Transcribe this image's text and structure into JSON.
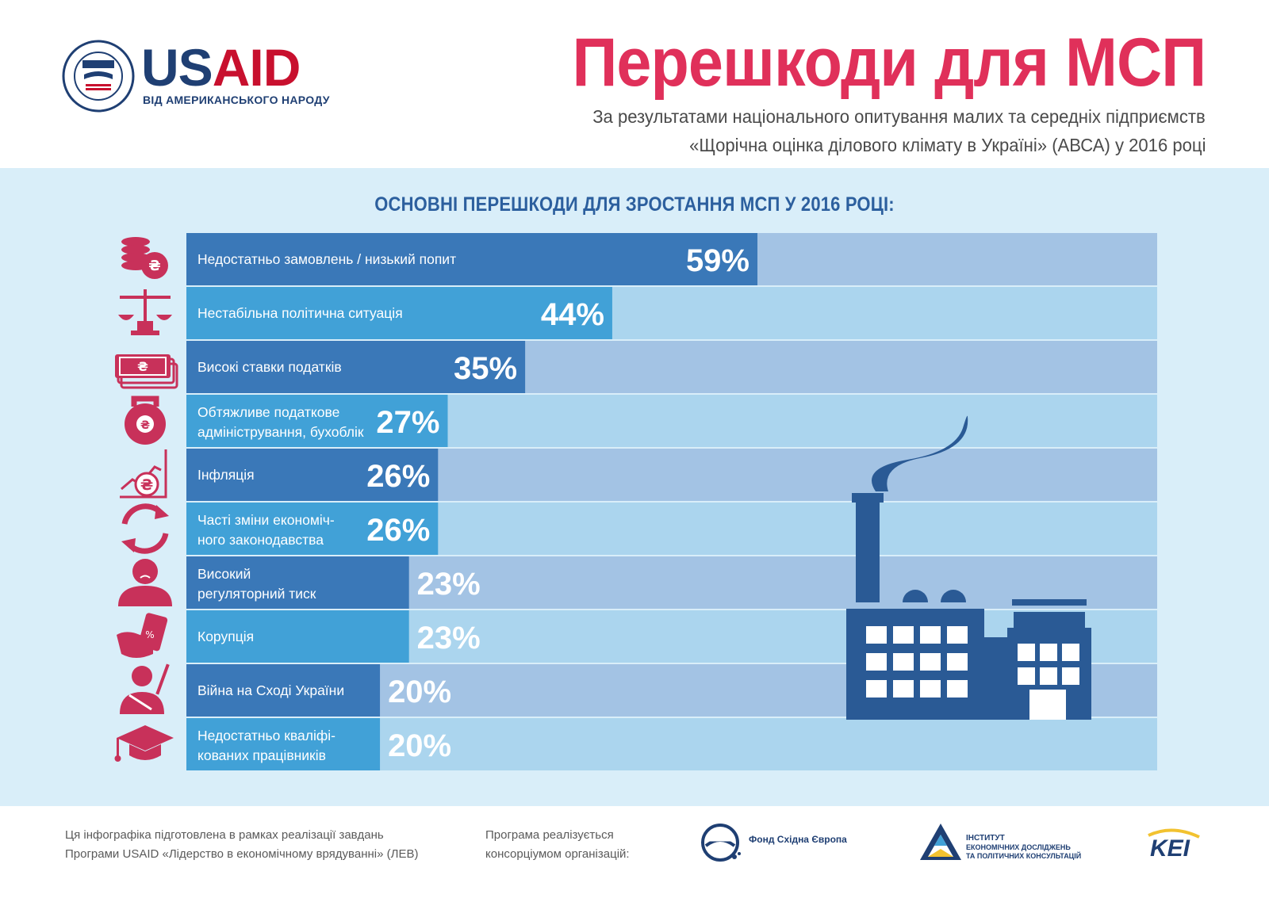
{
  "header": {
    "usaid_us": "US",
    "usaid_aid": "AID",
    "usaid_tagline": "ВІД АМЕРИКАНСЬКОГО НАРОДУ",
    "title": "Перешкоди для МСП",
    "subtitle_line1": "За результатами національного опитування малих та середніх підприємств",
    "subtitle_line2": "«Щорічна оцінка ділового клімату в Україні» (АВСА) у 2016 році"
  },
  "chart_data": {
    "type": "bar",
    "orientation": "horizontal",
    "title": "ОСНОВНІ ПЕРЕШКОДИ ДЛЯ ЗРОСТАННЯ МСП У 2016 РОЦІ:",
    "xlim": [
      0,
      100
    ],
    "unit": "%",
    "categories": [
      [
        "Недостатньо замовлень / низький попит"
      ],
      [
        "Нестабільна політична ситуація"
      ],
      [
        "Високі ставки податків"
      ],
      [
        "Обтяжливе податкове",
        "адміністрування, бухоблік"
      ],
      [
        "Інфляція"
      ],
      [
        "Часті зміни економіч-",
        "ного законодавства"
      ],
      [
        "Високий",
        "регуляторний тиск"
      ],
      [
        "Корупція"
      ],
      [
        "Війна на Сході України"
      ],
      [
        "Недостатньо кваліфі-",
        "кованих працівників"
      ]
    ],
    "values": [
      59,
      44,
      35,
      27,
      26,
      26,
      23,
      23,
      20,
      20
    ],
    "value_labels": [
      "59%",
      "44%",
      "35%",
      "27%",
      "26%",
      "26%",
      "23%",
      "23%",
      "20%",
      "20%"
    ],
    "icons": [
      "coins-icon",
      "scales-icon",
      "banknotes-icon",
      "kettlebell-icon",
      "inflation-chart-icon",
      "cycle-arrows-icon",
      "sad-person-icon",
      "bribe-hand-icon",
      "soldier-icon",
      "graduation-cap-icon"
    ],
    "colors": {
      "bar_dark": "#3a78b8",
      "bar_light": "#41a1d7",
      "track_dark": "#a3c3e4",
      "track_light": "#abd5ee",
      "icon": "#c8315a",
      "factory": "#2a5a95"
    }
  },
  "footer": {
    "left_line1": "Ця інфографіка підготовлена в рамках реалізації завдань",
    "left_line2": "Програми USAID «Лідерство в економічному врядуванні» (ЛЕВ)",
    "mid_line1": "Програма реалізується",
    "mid_line2": "консорціумом організацій:",
    "org1": "Фонд Східна Європа",
    "org2_line1": "ІНСТИТУТ",
    "org2_line2": "ЕКОНОМІЧНИХ ДОСЛІДЖЕНЬ",
    "org2_line3": "ТА ПОЛІТИЧНИХ КОНСУЛЬТАЦІЙ",
    "org3": "KEI"
  }
}
